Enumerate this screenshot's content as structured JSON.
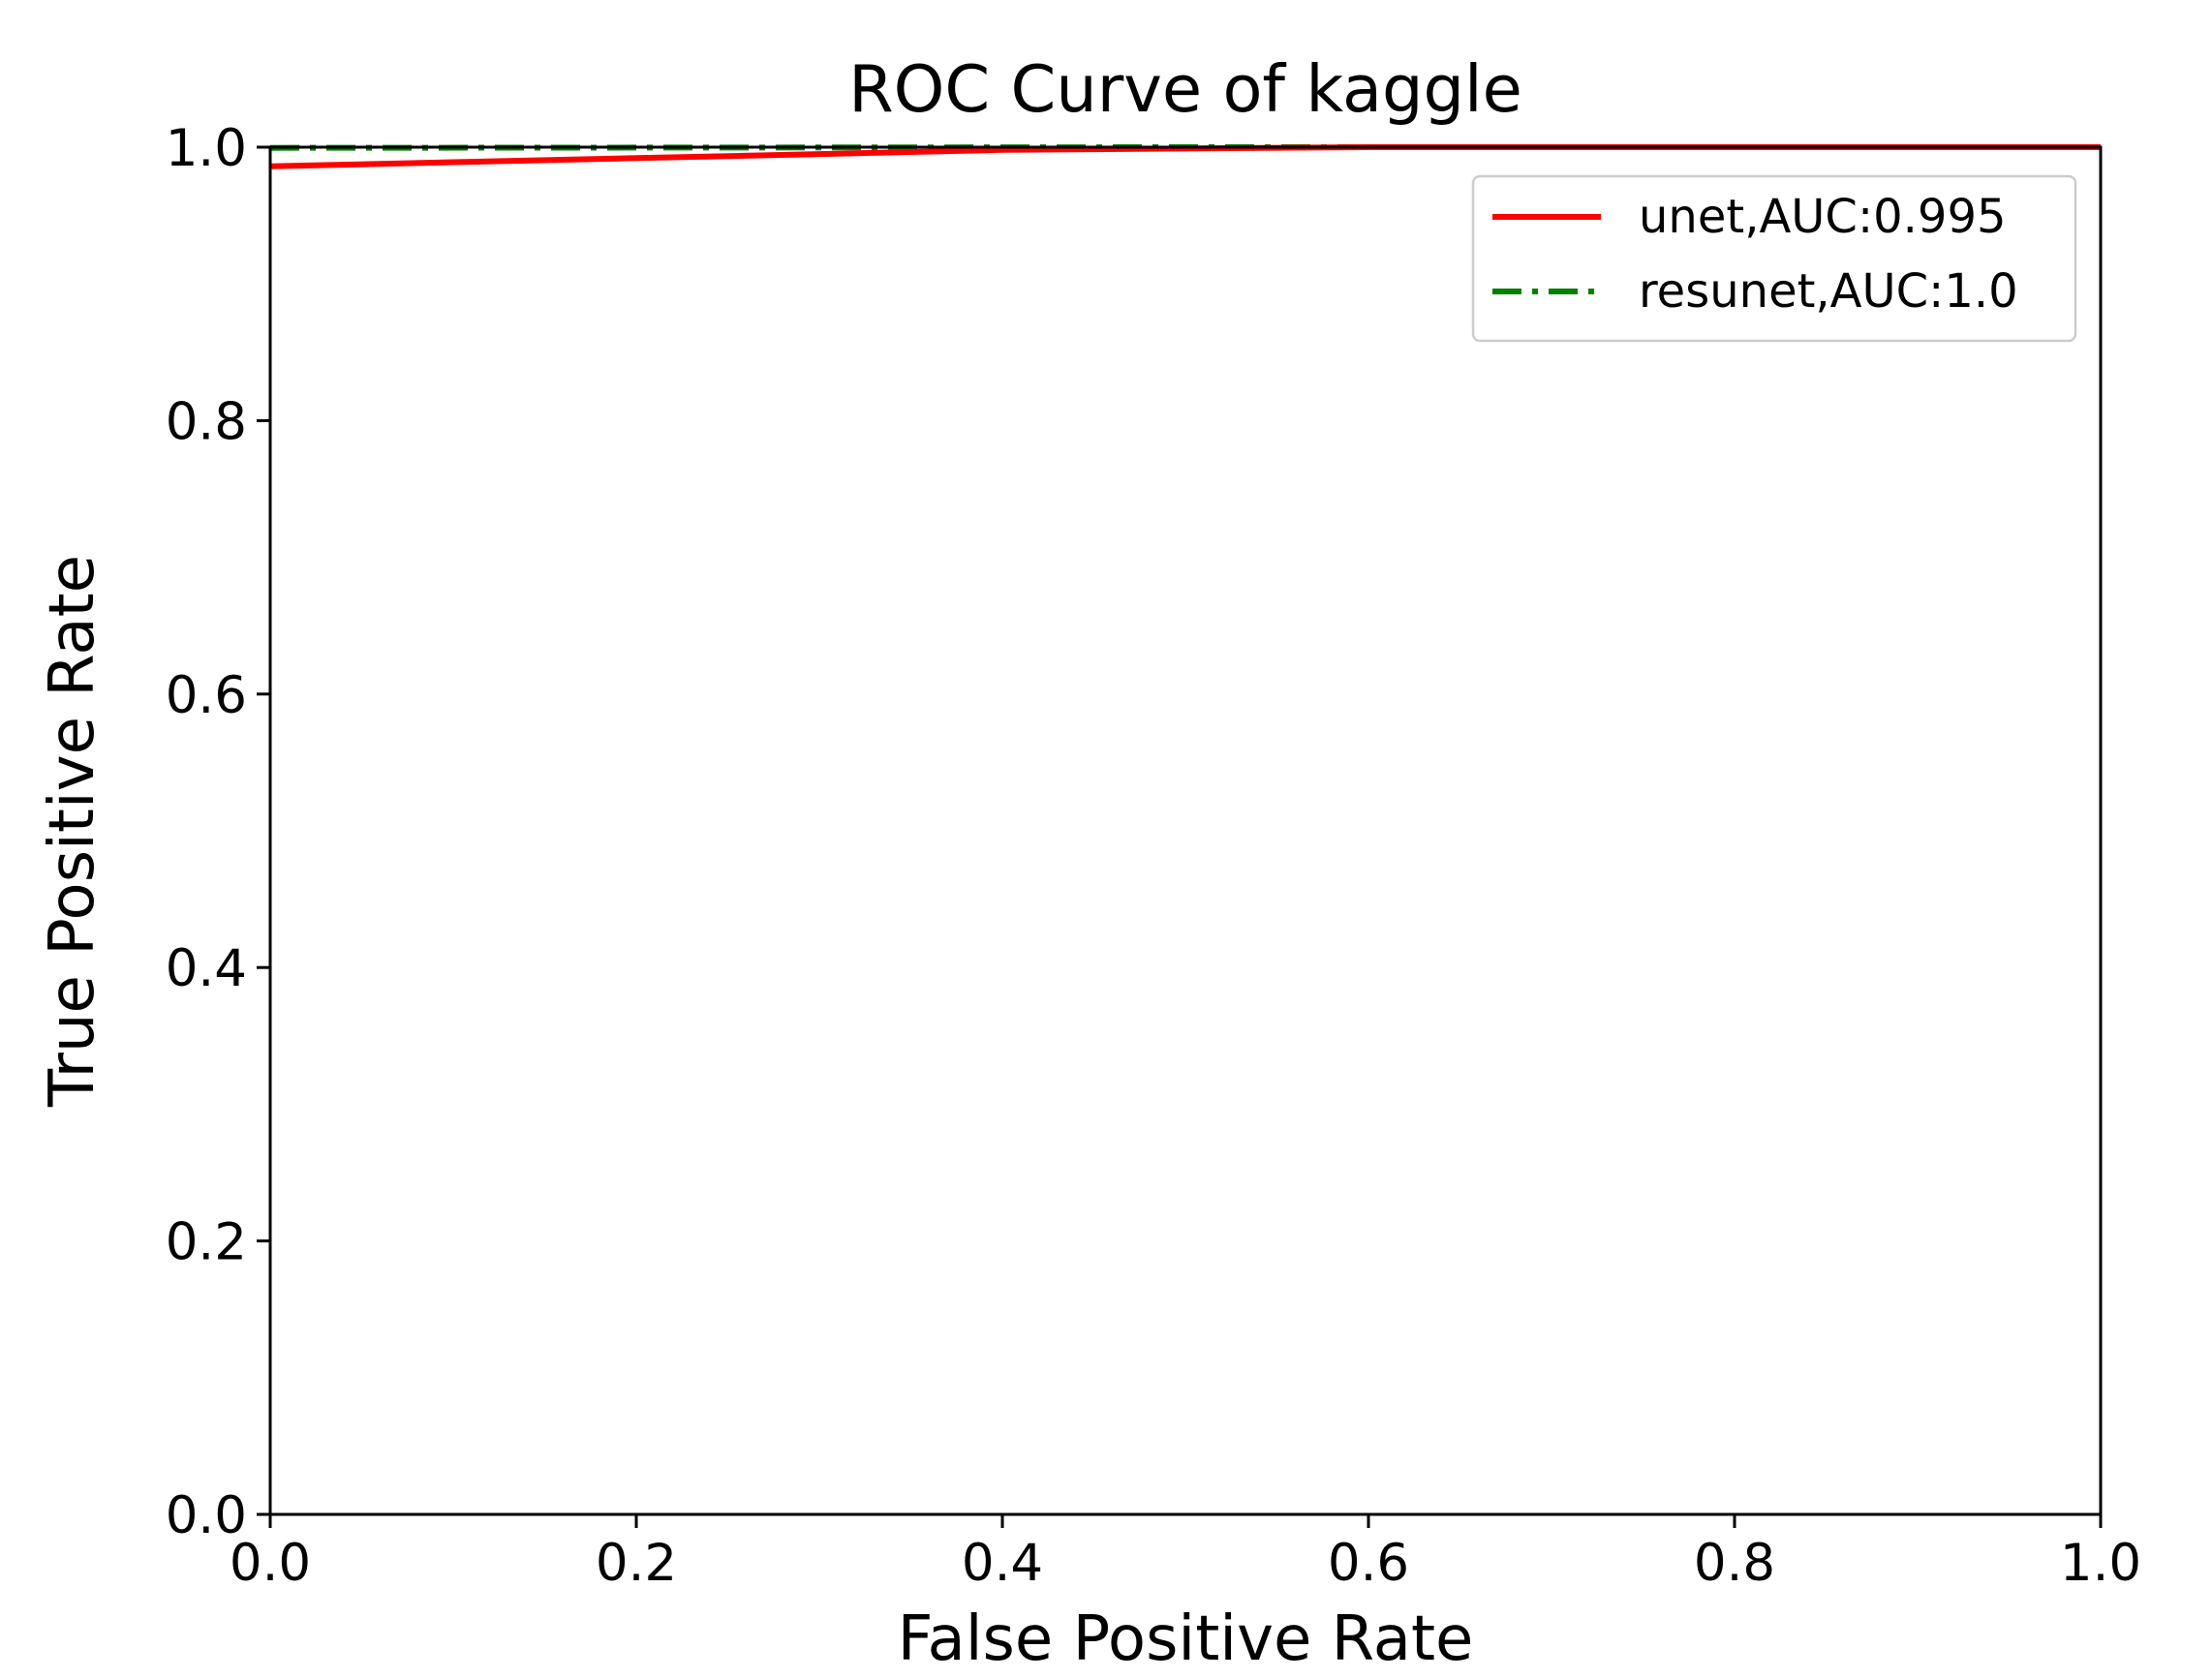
{
  "chart_data": {
    "type": "line",
    "title": "ROC Curve of kaggle",
    "xlabel": "False Positive Rate",
    "ylabel": "True Positive Rate",
    "xlim": [
      0.0,
      1.0
    ],
    "ylim": [
      0.0,
      1.0
    ],
    "xticks": [
      "0.0",
      "0.2",
      "0.4",
      "0.6",
      "0.8",
      "1.0"
    ],
    "yticks": [
      "0.0",
      "0.2",
      "0.4",
      "0.6",
      "0.8",
      "1.0"
    ],
    "grid": false,
    "legend_position": "top-right",
    "series": [
      {
        "name": "unet,AUC:0.995",
        "color": "#ff0000",
        "line_style": "solid",
        "points": [
          [
            0.0,
            0.986
          ],
          [
            0.1,
            0.989
          ],
          [
            0.2,
            0.992
          ],
          [
            0.3,
            0.995
          ],
          [
            0.4,
            0.998
          ],
          [
            0.5,
            0.999
          ],
          [
            0.6,
            1.0
          ],
          [
            0.8,
            1.0
          ],
          [
            1.0,
            1.0
          ]
        ]
      },
      {
        "name": "resunet,AUC:1.0",
        "color": "#008000",
        "line_style": "dashdot",
        "points": [
          [
            0.0,
            0.9995
          ],
          [
            0.3,
            0.9998
          ],
          [
            0.5,
            1.0
          ],
          [
            1.0,
            1.0
          ]
        ]
      }
    ]
  }
}
